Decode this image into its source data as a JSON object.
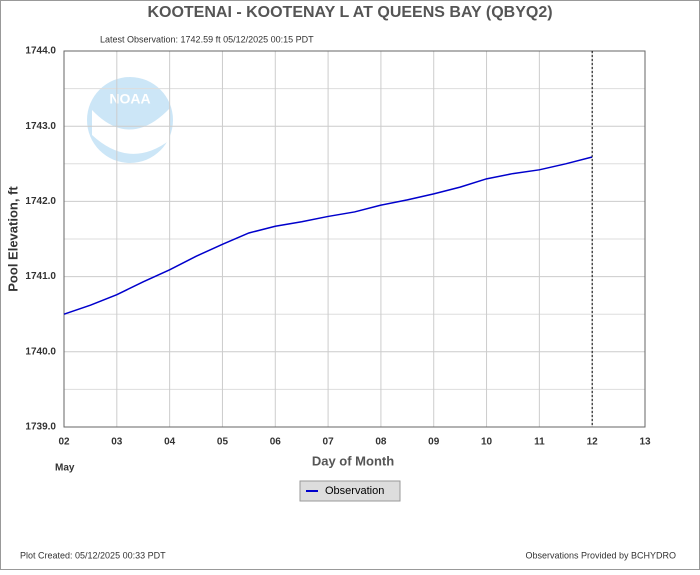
{
  "chart_data": {
    "type": "line",
    "title": "KOOTENAI - KOOTENAY L AT QUEENS BAY  (QBYQ2)",
    "subtitle": "Latest Observation: 1742.59 ft 05/12/2025 00:15 PDT",
    "ylabel": "Pool Elevation, ft",
    "xlabel": "Day of Month",
    "xsublabel": "May",
    "footer_left": "Plot Created: 05/12/2025 00:33 PDT",
    "footer_right": "Observations Provided by BCHYDRO",
    "xlim": [
      2,
      13
    ],
    "xticks": [
      {
        "value": 2,
        "label": "02"
      },
      {
        "value": 3,
        "label": "03"
      },
      {
        "value": 4,
        "label": "04"
      },
      {
        "value": 5,
        "label": "05"
      },
      {
        "value": 6,
        "label": "06"
      },
      {
        "value": 7,
        "label": "07"
      },
      {
        "value": 8,
        "label": "08"
      },
      {
        "value": 9,
        "label": "09"
      },
      {
        "value": 10,
        "label": "10"
      },
      {
        "value": 11,
        "label": "11"
      },
      {
        "value": 12,
        "label": "12"
      },
      {
        "value": 13,
        "label": "13"
      }
    ],
    "ylim": [
      1739,
      1744
    ],
    "yticks": [
      {
        "value": 1739,
        "label": "1739.0"
      },
      {
        "value": 1740,
        "label": "1740.0"
      },
      {
        "value": 1741,
        "label": "1741.0"
      },
      {
        "value": 1742,
        "label": "1742.0"
      },
      {
        "value": 1743,
        "label": "1743.0"
      },
      {
        "value": 1744,
        "label": "1744.0"
      }
    ],
    "minor_yticks": [
      1739.5,
      1740.5,
      1741.5,
      1742.5,
      1743.5
    ],
    "grid": true,
    "series": [
      {
        "name": "Observation",
        "color": "#0000cc",
        "x": [
          2,
          2.5,
          3,
          3.5,
          4,
          4.5,
          5,
          5.5,
          6,
          6.5,
          7,
          7.5,
          8,
          8.5,
          9,
          9.5,
          10,
          10.5,
          11,
          11.5,
          12
        ],
        "values": [
          1740.5,
          1740.62,
          1740.76,
          1740.93,
          1741.09,
          1741.27,
          1741.43,
          1741.58,
          1741.67,
          1741.73,
          1741.8,
          1741.86,
          1741.95,
          1742.02,
          1742.1,
          1742.19,
          1742.3,
          1742.37,
          1742.42,
          1742.5,
          1742.59
        ]
      }
    ]
  }
}
